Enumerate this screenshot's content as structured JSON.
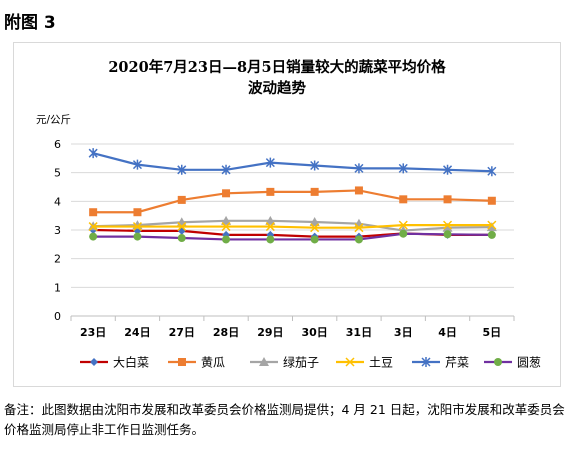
{
  "figure_label": "附图 3",
  "footnote": "备注：此图数据由沈阳市发展和改革委员会价格监测局提供；4 月 21 日起，沈阳市发展和改革委员会价格监测局停止非工作日监测任务。",
  "chart_data": {
    "type": "line",
    "title_lines": [
      "2020年7月23日—8月5日销量较大的蔬菜平均价格",
      "波动趋势"
    ],
    "ylabel": "元/公斤",
    "xlabel": "",
    "ylim": [
      0,
      6
    ],
    "yticks": [
      0,
      1,
      2,
      3,
      4,
      5,
      6
    ],
    "grid": true,
    "legend_position": "bottom",
    "categories": [
      "23日",
      "24日",
      "27日",
      "28日",
      "29日",
      "30日",
      "31日",
      "3日",
      "4日",
      "5日"
    ],
    "series": [
      {
        "name": "大白菜",
        "color": "#4472c4",
        "marker": "diamond",
        "values": [
          3.0,
          2.97,
          2.97,
          2.83,
          2.83,
          2.77,
          2.77,
          2.88,
          2.83,
          2.83
        ]
      },
      {
        "name": "黄瓜",
        "color": "#ed7d31",
        "marker": "square",
        "values": [
          3.62,
          3.62,
          4.05,
          4.28,
          4.33,
          4.33,
          4.38,
          4.07,
          4.07,
          4.02
        ]
      },
      {
        "name": "绿茄子",
        "color": "#a5a5a5",
        "marker": "triangle",
        "values": [
          3.13,
          3.17,
          3.27,
          3.32,
          3.32,
          3.28,
          3.22,
          2.98,
          3.08,
          3.1
        ]
      },
      {
        "name": "土豆",
        "color": "#ffc000",
        "marker": "cross",
        "values": [
          3.12,
          3.12,
          3.12,
          3.12,
          3.12,
          3.08,
          3.08,
          3.17,
          3.17,
          3.17
        ]
      },
      {
        "name": "芹菜",
        "color": "#4472c4",
        "marker": "star",
        "values": [
          5.68,
          5.28,
          5.1,
          5.1,
          5.35,
          5.25,
          5.15,
          5.15,
          5.1,
          5.05
        ]
      },
      {
        "name": "圆葱",
        "color": "#70ad47",
        "marker": "circle",
        "values": [
          2.77,
          2.77,
          2.72,
          2.67,
          2.67,
          2.67,
          2.67,
          2.87,
          2.85,
          2.83
        ]
      }
    ],
    "line_color_overrides": {
      "大白菜": "#c00000",
      "圆葱": "#7030a0"
    }
  }
}
